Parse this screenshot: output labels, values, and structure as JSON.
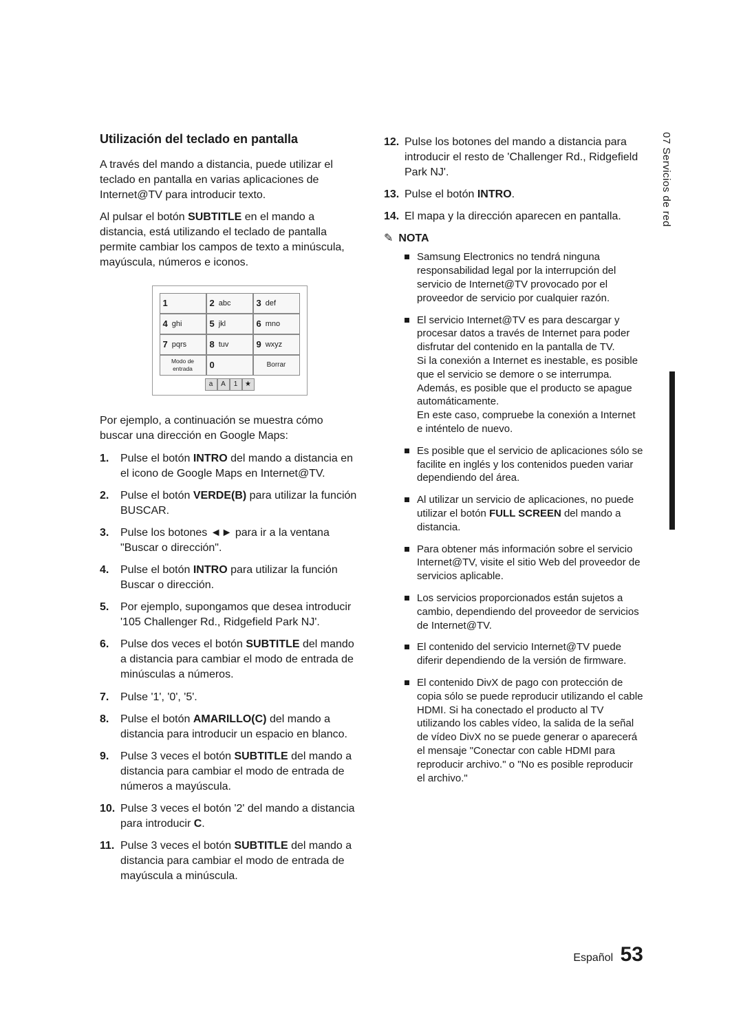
{
  "sideTab": "07  Servicios de red",
  "pageLang": "Español",
  "pageNum": "53",
  "sectionTitle": "Utilización del teclado en pantalla",
  "intro1_a": "A través del mando a distancia, puede utilizar el teclado en pantalla en varias aplicaciones de Internet@TV para introducir texto.",
  "intro2_a": "Al pulsar el botón ",
  "intro2_b": "SUBTITLE",
  "intro2_c": " en el mando a distancia, está utilizando el teclado de pantalla permite cambiar los campos de texto a minúscula, mayúscula, números e iconos.",
  "keypad": {
    "rows": [
      [
        {
          "n": "1",
          "t": ""
        },
        {
          "n": "2",
          "t": "abc"
        },
        {
          "n": "3",
          "t": "def"
        }
      ],
      [
        {
          "n": "4",
          "t": "ghi"
        },
        {
          "n": "5",
          "t": "jkl"
        },
        {
          "n": "6",
          "t": "mno"
        }
      ],
      [
        {
          "n": "7",
          "t": "pqrs"
        },
        {
          "n": "8",
          "t": "tuv"
        },
        {
          "n": "9",
          "t": "wxyz"
        }
      ]
    ],
    "bottom": {
      "modo": "Modo de entrada",
      "zero": "0",
      "borrar": "Borrar"
    },
    "modes": [
      "a",
      "A",
      "1",
      "★"
    ]
  },
  "example_intro": "Por ejemplo, a continuación se muestra cómo buscar una dirección en Google Maps:",
  "steps_left": [
    {
      "n": "1.",
      "pre": "Pulse el botón ",
      "b": "INTRO",
      "post": " del mando a distancia en el icono de Google Maps en Internet@TV."
    },
    {
      "n": "2.",
      "pre": "Pulse el botón ",
      "b": "VERDE(B)",
      "post": " para utilizar la función BUSCAR."
    },
    {
      "n": "3.",
      "pre": "Pulse los botones ",
      "b": "◄►",
      "post": " para ir a la ventana \"Buscar o dirección\"."
    },
    {
      "n": "4.",
      "pre": "Pulse el botón ",
      "b": "INTRO",
      "post": " para utilizar la función Buscar o dirección."
    },
    {
      "n": "5.",
      "pre": "Por ejemplo, supongamos que desea introducir '105 Challenger Rd., Ridgefield Park NJ'.",
      "b": "",
      "post": ""
    },
    {
      "n": "6.",
      "pre": "Pulse dos veces el botón ",
      "b": "SUBTITLE",
      "post": " del mando a distancia para cambiar el modo de entrada de minúsculas a números."
    },
    {
      "n": "7.",
      "pre": "Pulse '1', '0', '5'.",
      "b": "",
      "post": ""
    },
    {
      "n": "8.",
      "pre": "Pulse el botón ",
      "b": "AMARILLO(C)",
      "post": " del mando a distancia para introducir un espacio en blanco."
    },
    {
      "n": "9.",
      "pre": "Pulse 3 veces el botón ",
      "b": "SUBTITLE",
      "post": " del mando a distancia para cambiar el modo de entrada de números a mayúscula."
    },
    {
      "n": "10.",
      "pre": "Pulse 3 veces el botón '2' del mando a distancia para introducir ",
      "b": "C",
      "post": "."
    },
    {
      "n": "11.",
      "pre": "Pulse 3 veces el botón ",
      "b": "SUBTITLE",
      "post": " del mando a distancia para cambiar el modo de entrada de mayúscula a minúscula."
    }
  ],
  "steps_right": [
    {
      "n": "12.",
      "pre": "Pulse los botones del mando a distancia para introducir el resto de 'Challenger Rd., Ridgefield Park NJ'.",
      "b": "",
      "post": ""
    },
    {
      "n": "13.",
      "pre": "Pulse el botón ",
      "b": "INTRO",
      "post": "."
    },
    {
      "n": "14.",
      "pre": "El mapa y la dirección aparecen en pantalla.",
      "b": "",
      "post": ""
    }
  ],
  "notaLabel": "NOTA",
  "bullets": [
    "Samsung Electronics no tendrá ninguna responsabilidad legal por la interrupción del servicio de Internet@TV provocado por el proveedor de servicio por cualquier razón.",
    "El servicio Internet@TV es para descargar y procesar datos a través de Internet para poder disfrutar del contenido en la pantalla de TV.\nSi la conexión a Internet es inestable, es posible que el servicio se demore o se interrumpa.\nAdemás, es posible que el producto se apague automáticamente.\nEn este caso, compruebe la conexión a Internet e inténtelo de nuevo.",
    "Es posible que el servicio de aplicaciones sólo se facilite en inglés y los contenidos pueden variar dependiendo del área.",
    "Al utilizar un servicio de aplicaciones, no puede utilizar el botón FULL SCREEN del mando a distancia.",
    "Para obtener más información sobre el servicio Internet@TV, visite el sitio Web del proveedor de servicios aplicable.",
    "Los servicios proporcionados están sujetos a cambio, dependiendo del proveedor de servicios de Internet@TV.",
    "El contenido del servicio Internet@TV puede diferir dependiendo de la versión de firmware.",
    "El contenido DivX de pago con protección de copia sólo se puede reproducir utilizando el cable HDMI. Si ha conectado el producto al TV utilizando los cables vídeo, la salida de la señal de vídeo DivX no se puede generar o aparecerá el mensaje \"Conectar con cable HDMI para reproducir archivo.\" o \"No es posible reproducir el archivo.\""
  ],
  "bullet3_bold": "FULL SCREEN"
}
